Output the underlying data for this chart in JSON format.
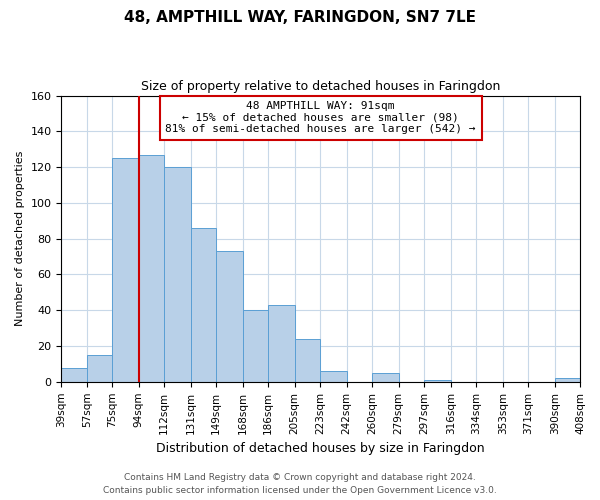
{
  "title": "48, AMPTHILL WAY, FARINGDON, SN7 7LE",
  "subtitle": "Size of property relative to detached houses in Faringdon",
  "xlabel": "Distribution of detached houses by size in Faringdon",
  "ylabel": "Number of detached properties",
  "footer_line1": "Contains HM Land Registry data © Crown copyright and database right 2024.",
  "footer_line2": "Contains public sector information licensed under the Open Government Licence v3.0.",
  "bin_labels": [
    "39sqm",
    "57sqm",
    "75sqm",
    "94sqm",
    "112sqm",
    "131sqm",
    "149sqm",
    "168sqm",
    "186sqm",
    "205sqm",
    "223sqm",
    "242sqm",
    "260sqm",
    "279sqm",
    "297sqm",
    "316sqm",
    "334sqm",
    "353sqm",
    "371sqm",
    "390sqm",
    "408sqm"
  ],
  "bar_values": [
    8,
    15,
    125,
    127,
    120,
    86,
    73,
    40,
    43,
    24,
    6,
    0,
    5,
    0,
    1,
    0,
    0,
    0,
    0,
    2
  ],
  "bar_color": "#b8d0e8",
  "bar_edge_color": "#5a9fd4",
  "annotation_line1": "48 AMPTHILL WAY: 91sqm",
  "annotation_line2": "← 15% of detached houses are smaller (98)",
  "annotation_line3": "81% of semi-detached houses are larger (542) →",
  "vline_x": 94,
  "vline_color": "#cc0000",
  "annotation_box_edge": "#cc0000",
  "ylim": [
    0,
    160
  ],
  "yticks": [
    0,
    20,
    40,
    60,
    80,
    100,
    120,
    140,
    160
  ],
  "bin_edges": [
    39,
    57,
    75,
    94,
    112,
    131,
    149,
    168,
    186,
    205,
    223,
    242,
    260,
    279,
    297,
    316,
    334,
    353,
    371,
    390,
    408
  ],
  "background_color": "#ffffff",
  "grid_color": "#c8d8e8"
}
